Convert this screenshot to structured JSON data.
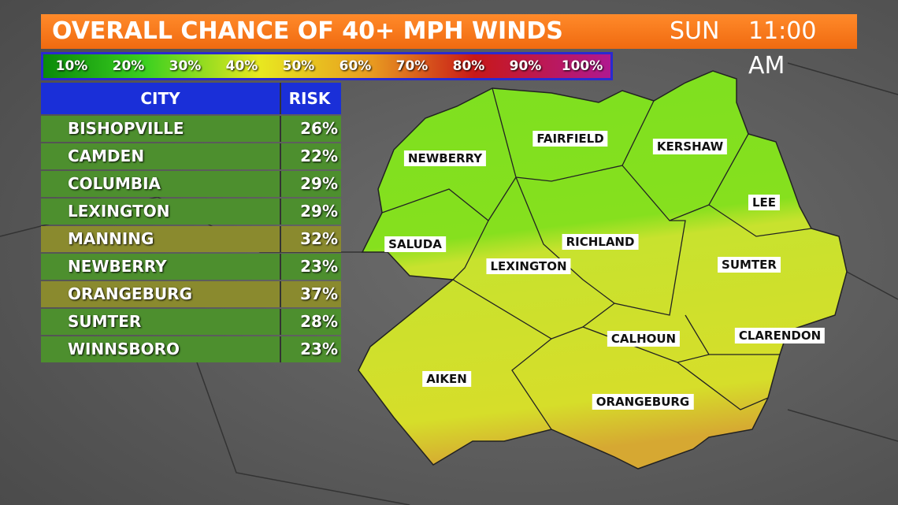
{
  "header": {
    "title": "OVERALL CHANCE OF 40+ MPH WINDS",
    "day": "SUN",
    "time": "11:00 AM"
  },
  "scale": [
    "10%",
    "20%",
    "30%",
    "40%",
    "50%",
    "60%",
    "70%",
    "80%",
    "90%",
    "100%"
  ],
  "table": {
    "columns": [
      "CITY",
      "RISK"
    ],
    "rows": [
      {
        "city": "BISHOPVILLE",
        "risk": "26%",
        "color": "#4d8f2e"
      },
      {
        "city": "CAMDEN",
        "risk": "22%",
        "color": "#4d8f2e"
      },
      {
        "city": "COLUMBIA",
        "risk": "29%",
        "color": "#4d8f2e"
      },
      {
        "city": "LEXINGTON",
        "risk": "29%",
        "color": "#4d8f2e"
      },
      {
        "city": "MANNING",
        "risk": "32%",
        "color": "#8a8a2e"
      },
      {
        "city": "NEWBERRY",
        "risk": "23%",
        "color": "#4d8f2e"
      },
      {
        "city": "ORANGEBURG",
        "risk": "37%",
        "color": "#8a8a2e"
      },
      {
        "city": "SUMTER",
        "risk": "28%",
        "color": "#4d8f2e"
      },
      {
        "city": "WINNSBORO",
        "risk": "23%",
        "color": "#4d8f2e"
      }
    ]
  },
  "map": {
    "counties": [
      "NEWBERRY",
      "FAIRFIELD",
      "KERSHAW",
      "LEE",
      "SALUDA",
      "RICHLAND",
      "LEXINGTON",
      "SUMTER",
      "CALHOUN",
      "CLARENDON",
      "AIKEN",
      "ORANGEBURG"
    ]
  }
}
